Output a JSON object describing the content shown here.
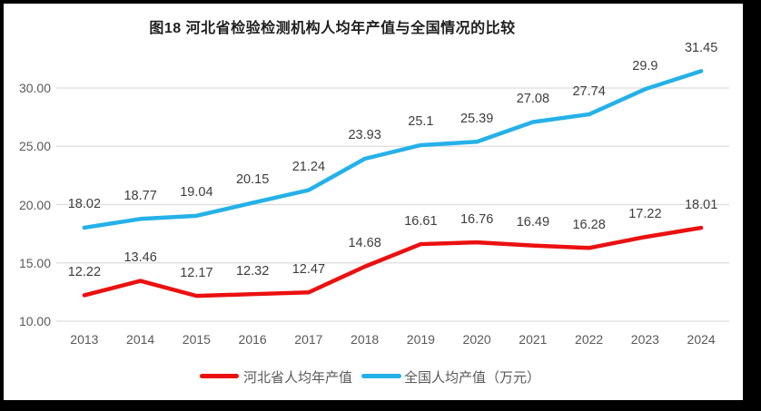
{
  "title": "图18 河北省检验检测机构人均年产值与全国情况的比较",
  "colors": {
    "hebei_line": "#eb1010",
    "national_line": "#25b1e8",
    "gridline": "#dcdcdc",
    "axis_text": "#595959",
    "data_label_text": "#3d3d3d",
    "title_text": "#1f1f1f",
    "frame": "#000000",
    "canvas": "#ffffff"
  },
  "chart_data": {
    "type": "line",
    "title": "图18 河北省检验检测机构人均年产值与全国情况的比较",
    "categories": [
      "2013",
      "2014",
      "2015",
      "2016",
      "2017",
      "2018",
      "2019",
      "2020",
      "2021",
      "2022",
      "2023",
      "2024"
    ],
    "series": [
      {
        "name": "河北省人均年产值",
        "color": "#eb1010",
        "values": [
          12.22,
          13.46,
          12.17,
          12.32,
          12.47,
          14.68,
          16.61,
          16.76,
          16.49,
          16.28,
          17.22,
          18.01
        ],
        "labels": [
          "12.22",
          "13.46",
          "12.17",
          "12.32",
          "12.47",
          "14.68",
          "16.61",
          "16.76",
          "16.49",
          "16.28",
          "17.22",
          "18.01"
        ]
      },
      {
        "name": "全国人均产值（万元）",
        "color": "#25b1e8",
        "values": [
          18.02,
          18.77,
          19.04,
          20.15,
          21.24,
          23.93,
          25.1,
          25.39,
          27.08,
          27.74,
          29.9,
          31.45
        ],
        "labels": [
          "18.02",
          "18.77",
          "19.04",
          "20.15",
          "21.24",
          "23.93",
          "25.1",
          "25.39",
          "27.08",
          "27.74",
          "29.9",
          "31.45"
        ]
      }
    ],
    "xlabel": "",
    "ylabel": "",
    "ylim": [
      10,
      30
    ],
    "y_tick_values": [
      10,
      15,
      20,
      25,
      30
    ],
    "y_tick_labels": [
      "10.00",
      "15.00",
      "20.00",
      "25.00",
      "30.00"
    ],
    "grid": "horizontal",
    "data_labels": true,
    "legend_position": "bottom"
  }
}
